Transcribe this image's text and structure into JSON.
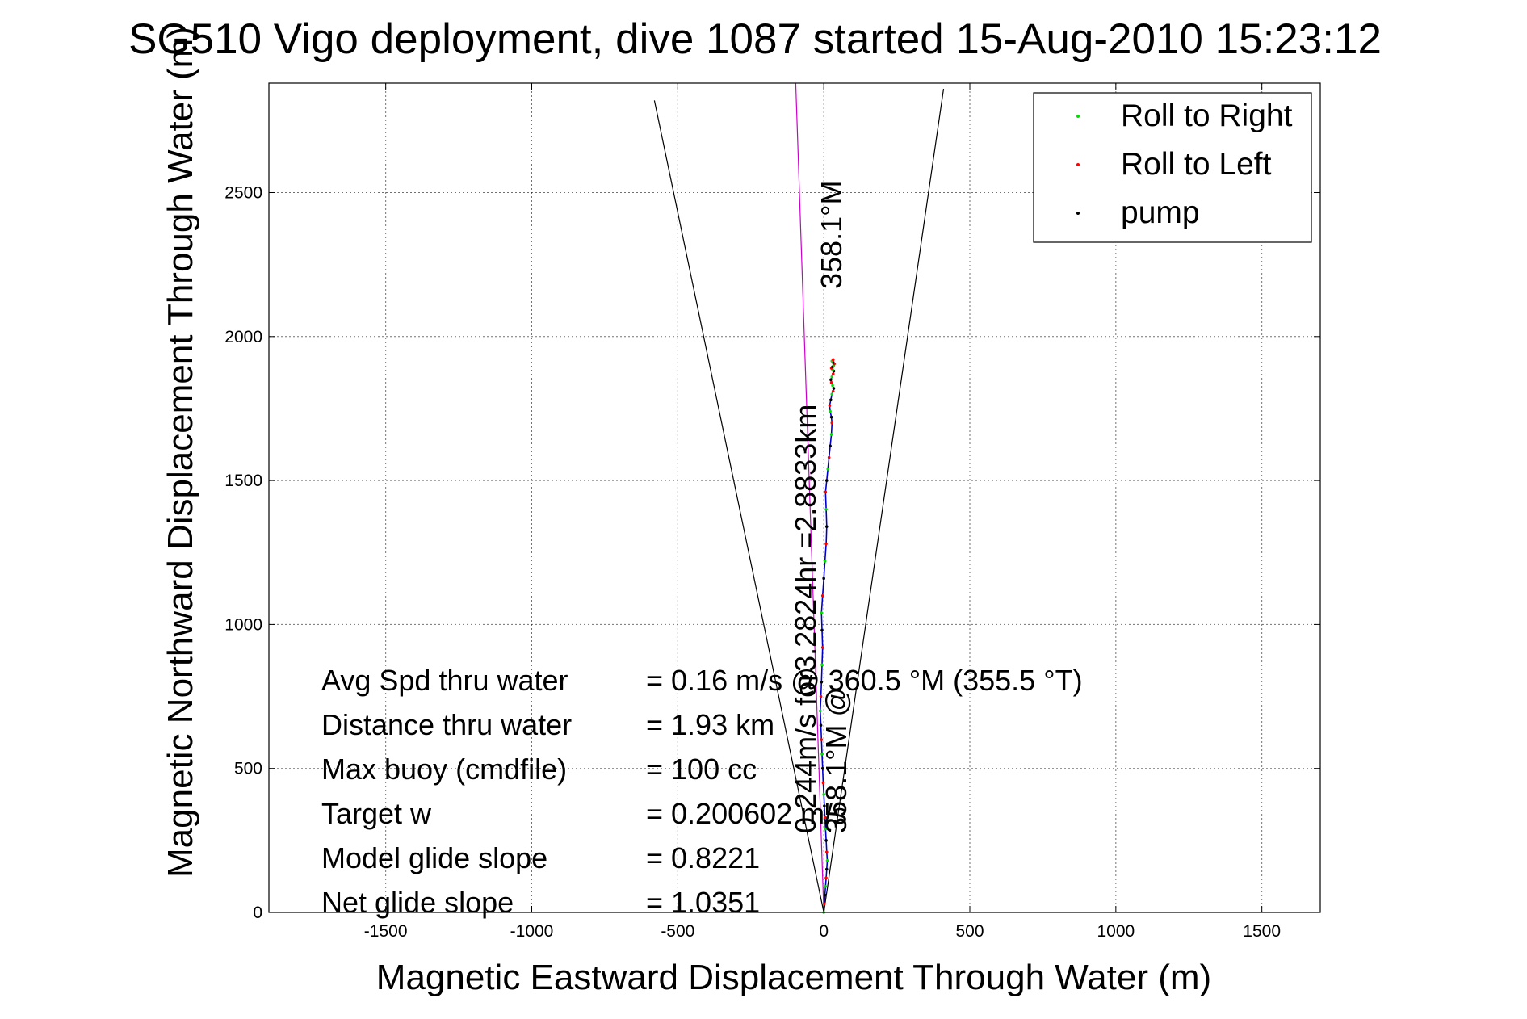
{
  "chart_data": {
    "type": "line",
    "title": "SG510 Vigo deployment, dive 1087 started 15-Aug-2010 15:23:12",
    "xlabel": "Magnetic Eastward Displacement Through Water (m)",
    "ylabel": "Magnetic Northward Displacement Through Water (m)",
    "xlim": [
      -1900,
      1700
    ],
    "ylim": [
      0,
      2880
    ],
    "xticks": [
      -1500,
      -1000,
      -500,
      0,
      500,
      1000,
      1500
    ],
    "yticks": [
      0,
      500,
      1000,
      1500,
      2000,
      2500
    ],
    "grid": true,
    "legend_position": "top-right",
    "legend": [
      {
        "label": "Roll to Right",
        "color": "#00e000"
      },
      {
        "label": "Roll to Left",
        "color": "#ff0000"
      },
      {
        "label": "pump",
        "color": "#000000"
      }
    ],
    "series": [
      {
        "name": "track",
        "color": "#0000cc",
        "x": [
          0,
          2,
          4,
          6,
          8,
          10,
          12,
          10,
          8,
          6,
          4,
          2,
          0,
          -2,
          -4,
          -6,
          -8,
          -10,
          -12,
          -10,
          -8,
          -6,
          -4,
          -6,
          -8,
          -4,
          0,
          4,
          8,
          10,
          8,
          6,
          10,
          14,
          18,
          22,
          26,
          28,
          26,
          22,
          20,
          24,
          28,
          32,
          34,
          30,
          26,
          24,
          28,
          32,
          34,
          30,
          26,
          30,
          34,
          36,
          32,
          28,
          32
        ],
        "y": [
          0,
          30,
          60,
          90,
          120,
          150,
          180,
          210,
          250,
          290,
          330,
          370,
          410,
          450,
          500,
          550,
          600,
          650,
          700,
          750,
          800,
          860,
          920,
          980,
          1040,
          1100,
          1160,
          1220,
          1280,
          1340,
          1400,
          1460,
          1500,
          1540,
          1580,
          1620,
          1660,
          1700,
          1720,
          1740,
          1760,
          1780,
          1800,
          1810,
          1820,
          1830,
          1840,
          1850,
          1860,
          1870,
          1880,
          1885,
          1890,
          1895,
          1900,
          1905,
          1910,
          1915,
          1920
        ]
      },
      {
        "name": "heading-line",
        "color": "#cc00cc",
        "x": [
          0,
          -96
        ],
        "y": [
          0,
          2880
        ]
      },
      {
        "name": "cone-left",
        "color": "#000000",
        "x": [
          0,
          -580
        ],
        "y": [
          0,
          2820
        ]
      },
      {
        "name": "cone-right",
        "color": "#000000",
        "x": [
          0,
          410
        ],
        "y": [
          0,
          2860
        ]
      }
    ],
    "annotations": {
      "heading_top": "358.1°M",
      "rotated_info": "0.244m/s for3.2824hr =2.8833km",
      "heading_mid": "358.1°M @",
      "stats": [
        {
          "label": "Avg Spd thru water",
          "value": "=  0.16 m/s @  360.5 °M (355.5 °T)"
        },
        {
          "label": "Distance thru water",
          "value": "=  1.93 km"
        },
        {
          "label": "Max buoy (cmdfile)",
          "value": "= 100 cc"
        },
        {
          "label": "Target w",
          "value": "= 0.200602 m/s"
        },
        {
          "label": "Model glide slope",
          "value": "= 0.8221"
        },
        {
          "label": "Net glide slope",
          "value": "= 1.0351"
        }
      ]
    }
  }
}
